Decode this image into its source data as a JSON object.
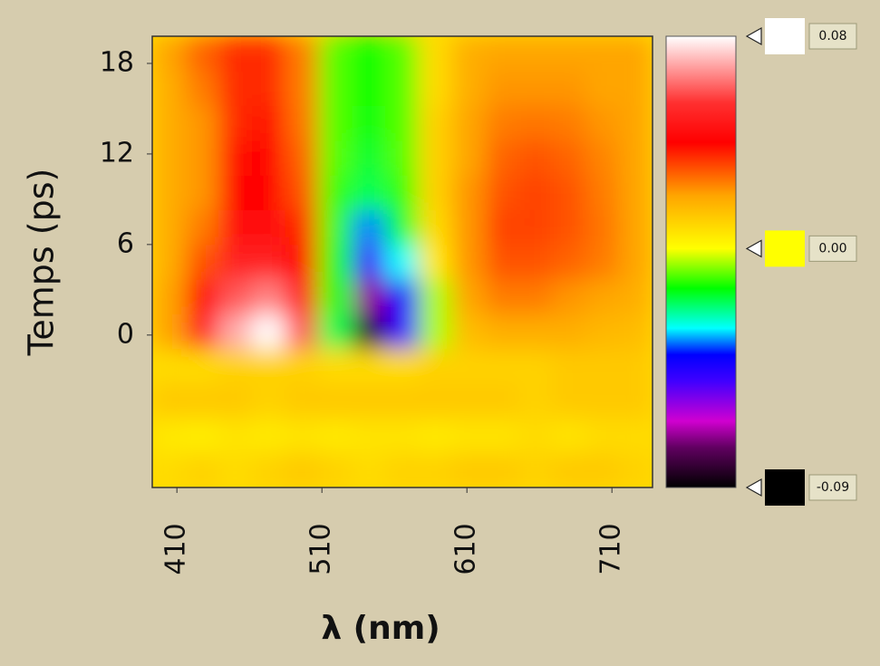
{
  "chart_data": {
    "type": "heatmap",
    "xlabel": "λ (nm)",
    "ylabel": "Temps (ps)",
    "xlim": [
      393,
      738
    ],
    "ylim": [
      -10.1,
      19.8
    ],
    "xticks": [
      410,
      510,
      610,
      710
    ],
    "yticks": [
      0,
      6,
      12,
      18
    ],
    "x": [
      404.5,
      427.5,
      450.5,
      473.5,
      496.5,
      519.5,
      542.5,
      565.5,
      588.5,
      611.5,
      634.5,
      657.5,
      680.5,
      703.5,
      726.5
    ],
    "y": [
      -8.95,
      -6.65,
      -4.35,
      -2.05,
      0.25,
      2.55,
      4.85,
      7.15,
      9.45,
      11.75,
      14.05,
      16.35,
      18.65
    ],
    "z": [
      [
        0.008,
        0.01,
        0.008,
        0.01,
        0.012,
        0.01,
        0.008,
        0.01,
        0.01,
        0.012,
        0.012,
        0.01,
        0.012,
        0.012,
        0.01
      ],
      [
        0.005,
        0.004,
        0.006,
        0.005,
        0.006,
        0.005,
        0.006,
        0.006,
        0.005,
        0.006,
        0.006,
        0.008,
        0.006,
        0.008,
        0.008
      ],
      [
        0.012,
        0.012,
        0.012,
        0.01,
        0.012,
        0.012,
        0.012,
        0.012,
        0.012,
        0.012,
        0.012,
        0.01,
        0.012,
        0.012,
        0.012
      ],
      [
        0.008,
        0.008,
        0.01,
        0.01,
        0.01,
        0.008,
        0.008,
        0.008,
        0.01,
        0.01,
        0.01,
        0.01,
        0.012,
        0.012,
        0.012
      ],
      [
        0.02,
        0.05,
        0.07,
        0.08,
        0.06,
        -0.02,
        -0.085,
        -0.05,
        -0.005,
        0.015,
        0.018,
        0.018,
        0.018,
        0.016,
        0.015
      ],
      [
        0.02,
        0.04,
        0.06,
        0.065,
        0.05,
        -0.015,
        -0.07,
        -0.04,
        -0.005,
        0.02,
        0.025,
        0.025,
        0.022,
        0.02,
        0.018
      ],
      [
        0.018,
        0.03,
        0.05,
        0.05,
        0.04,
        -0.015,
        -0.05,
        -0.03,
        0.005,
        0.022,
        0.03,
        0.03,
        0.028,
        0.025,
        0.02
      ],
      [
        0.018,
        0.025,
        0.045,
        0.045,
        0.035,
        -0.012,
        -0.035,
        -0.018,
        0.008,
        0.022,
        0.032,
        0.032,
        0.03,
        0.026,
        0.02
      ],
      [
        0.018,
        0.022,
        0.04,
        0.042,
        0.03,
        -0.012,
        -0.02,
        -0.012,
        0.01,
        0.022,
        0.03,
        0.032,
        0.03,
        0.025,
        0.02
      ],
      [
        0.018,
        0.022,
        0.038,
        0.04,
        0.028,
        -0.01,
        -0.018,
        -0.01,
        0.01,
        0.02,
        0.028,
        0.03,
        0.028,
        0.024,
        0.02
      ],
      [
        0.018,
        0.022,
        0.035,
        0.038,
        0.026,
        -0.01,
        -0.016,
        -0.01,
        0.01,
        0.02,
        0.025,
        0.026,
        0.025,
        0.022,
        0.02
      ],
      [
        0.018,
        0.025,
        0.035,
        0.035,
        0.025,
        -0.01,
        -0.015,
        -0.01,
        0.008,
        0.018,
        0.022,
        0.022,
        0.022,
        0.02,
        0.02
      ],
      [
        0.02,
        0.028,
        0.035,
        0.035,
        0.025,
        -0.01,
        -0.015,
        -0.01,
        0.008,
        0.018,
        0.02,
        0.02,
        0.02,
        0.02,
        0.02
      ]
    ],
    "colorbar": {
      "lim": [
        -0.09,
        0.08
      ],
      "ticks": [
        0.08,
        {
          "value": 0,
          "label": "0.00"
        },
        -0.09
      ],
      "stops": [
        [
          -0.09,
          "#000000"
        ],
        [
          -0.075,
          "#600060"
        ],
        [
          -0.065,
          "#d000d0"
        ],
        [
          -0.05,
          "#4000ff"
        ],
        [
          -0.04,
          "#0000ff"
        ],
        [
          -0.03,
          "#00ffff"
        ],
        [
          -0.015,
          "#00ff00"
        ],
        [
          0,
          "#ffff00"
        ],
        [
          0.02,
          "#ffa500"
        ],
        [
          0.04,
          "#ff0000"
        ],
        [
          0.055,
          "#ff3030"
        ],
        [
          0.08,
          "#ffffff"
        ]
      ]
    }
  }
}
